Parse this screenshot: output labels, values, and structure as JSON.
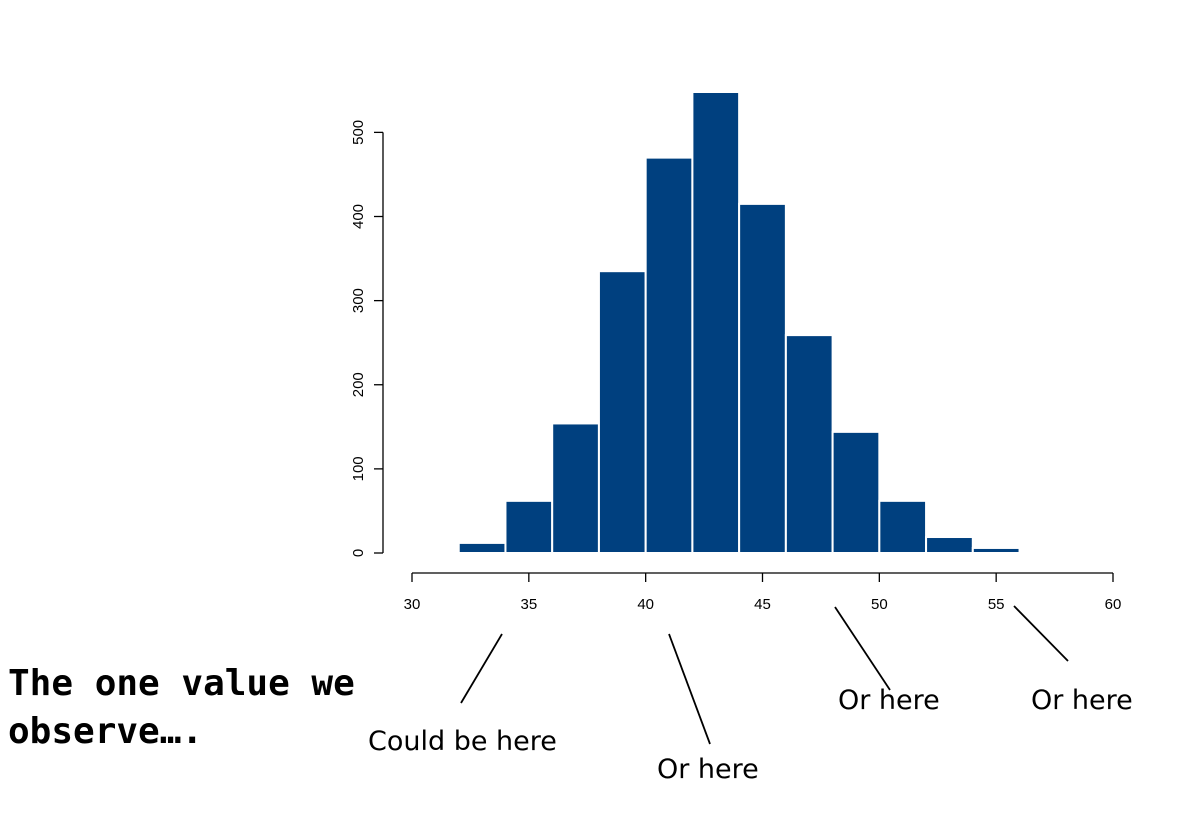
{
  "caption": {
    "line1": "The one value we",
    "line2": "observe…."
  },
  "annotations": [
    {
      "text": "Could be here",
      "x_value": 34
    },
    {
      "text": "Or here",
      "x_value": 41
    },
    {
      "text": "Or here",
      "x_value": 47.5
    },
    {
      "text": "Or here",
      "x_value": 55.5
    }
  ],
  "chart_data": {
    "type": "bar",
    "title": "",
    "xlabel": "",
    "ylabel": "",
    "bin_width": 2,
    "bins_start": [
      32,
      34,
      36,
      38,
      40,
      42,
      44,
      46,
      48,
      50,
      52,
      54
    ],
    "values": [
      12,
      62,
      154,
      335,
      470,
      548,
      415,
      259,
      144,
      62,
      19,
      6
    ],
    "xlim": [
      30,
      60
    ],
    "ylim": [
      0,
      548
    ],
    "x_ticks": [
      "30",
      "35",
      "40",
      "45",
      "50",
      "55",
      "60"
    ],
    "y_ticks": [
      "0",
      "100",
      "200",
      "300",
      "400",
      "500"
    ],
    "bar_color": "#00407f",
    "bar_edge_color": "#ffffff",
    "grid": false
  }
}
